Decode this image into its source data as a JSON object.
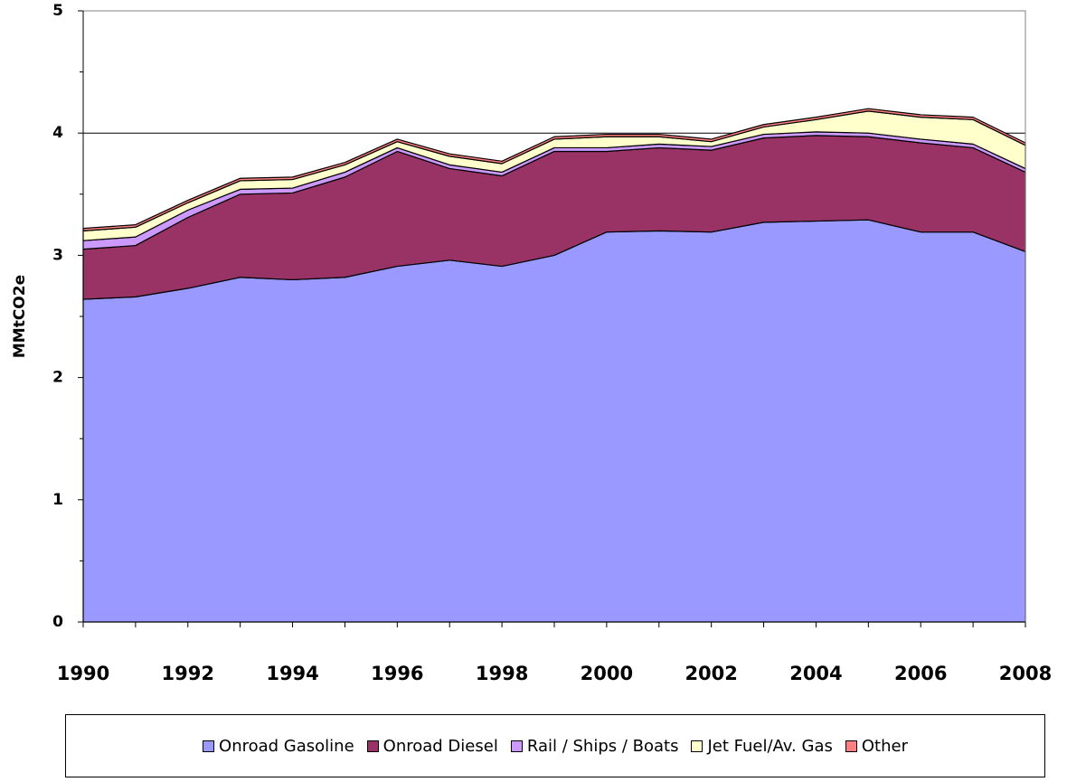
{
  "chart_data": {
    "type": "stacked-area",
    "ylabel": "MMtCO2e",
    "x": [
      1990,
      1991,
      1992,
      1993,
      1994,
      1995,
      1996,
      1997,
      1998,
      1999,
      2000,
      2001,
      2002,
      2003,
      2004,
      2005,
      2006,
      2007,
      2008
    ],
    "xlim": [
      1990,
      2008
    ],
    "xticks": [
      1990,
      1992,
      1994,
      1996,
      1998,
      2000,
      2002,
      2004,
      2006,
      2008
    ],
    "ylim": [
      0,
      5
    ],
    "yticks": [
      0,
      1,
      2,
      3,
      4,
      5
    ],
    "grid": true,
    "series": [
      {
        "name": "Onroad Gasoline",
        "color": "#9999ff",
        "values": [
          2.64,
          2.66,
          2.73,
          2.82,
          2.8,
          2.82,
          2.91,
          2.96,
          2.91,
          3.0,
          3.19,
          3.2,
          3.19,
          3.27,
          3.28,
          3.29,
          3.19,
          3.19,
          3.03
        ]
      },
      {
        "name": "Onroad Diesel",
        "color": "#993366",
        "values": [
          0.41,
          0.42,
          0.58,
          0.68,
          0.71,
          0.82,
          0.94,
          0.75,
          0.74,
          0.85,
          0.66,
          0.68,
          0.67,
          0.69,
          0.7,
          0.68,
          0.73,
          0.69,
          0.65
        ]
      },
      {
        "name": "Rail / Ships / Boats",
        "color": "#cc99ff",
        "values": [
          0.07,
          0.07,
          0.06,
          0.04,
          0.04,
          0.04,
          0.03,
          0.03,
          0.03,
          0.03,
          0.03,
          0.03,
          0.03,
          0.03,
          0.03,
          0.03,
          0.03,
          0.03,
          0.03
        ]
      },
      {
        "name": "Jet Fuel/Av. Gas",
        "color": "#ffffcc",
        "values": [
          0.08,
          0.08,
          0.06,
          0.07,
          0.07,
          0.06,
          0.05,
          0.07,
          0.07,
          0.07,
          0.09,
          0.06,
          0.04,
          0.06,
          0.1,
          0.18,
          0.18,
          0.2,
          0.19
        ]
      },
      {
        "name": "Other",
        "color": "#ff8080",
        "values": [
          0.02,
          0.02,
          0.02,
          0.02,
          0.02,
          0.02,
          0.02,
          0.02,
          0.02,
          0.02,
          0.02,
          0.02,
          0.02,
          0.02,
          0.02,
          0.02,
          0.02,
          0.02,
          0.02
        ]
      }
    ]
  }
}
